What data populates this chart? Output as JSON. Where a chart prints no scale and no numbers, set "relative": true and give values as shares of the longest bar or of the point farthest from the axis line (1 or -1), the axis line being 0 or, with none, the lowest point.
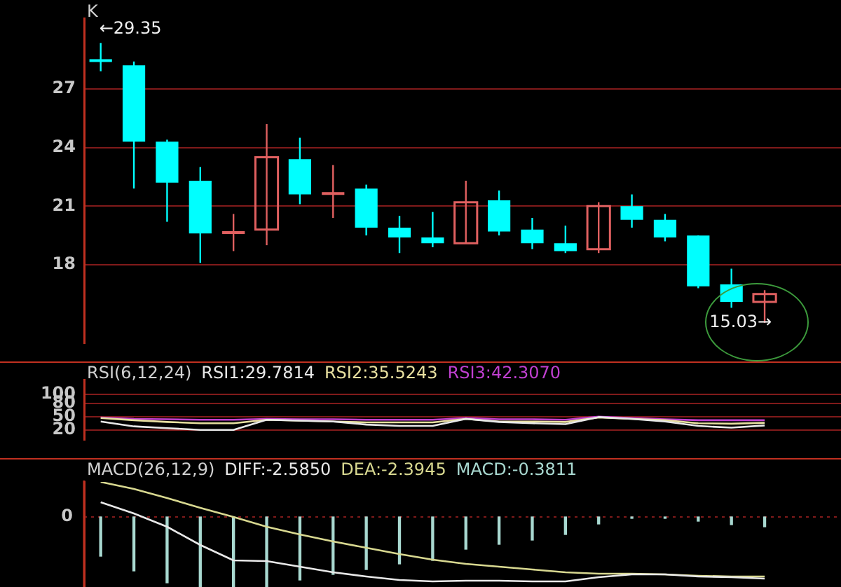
{
  "chart_data": [
    {
      "type": "candlestick",
      "title": "K",
      "categories": [
        null,
        null,
        null,
        null,
        null,
        null,
        null,
        null,
        null,
        null,
        null,
        null,
        null,
        null,
        null,
        null,
        null,
        null,
        null,
        null,
        null
      ],
      "ohlc": [
        [
          28.5,
          29.35,
          27.9,
          28.4
        ],
        [
          28.2,
          28.4,
          21.9,
          24.3
        ],
        [
          24.3,
          24.4,
          20.2,
          22.2
        ],
        [
          22.3,
          23.0,
          18.1,
          19.6
        ],
        [
          19.6,
          20.6,
          18.7,
          19.7
        ],
        [
          19.8,
          25.2,
          19.0,
          23.5
        ],
        [
          23.4,
          24.5,
          21.1,
          21.6
        ],
        [
          21.6,
          23.1,
          20.4,
          21.7
        ],
        [
          21.9,
          22.1,
          19.5,
          19.9
        ],
        [
          19.9,
          20.5,
          18.6,
          19.4
        ],
        [
          19.4,
          20.7,
          18.9,
          19.1
        ],
        [
          19.1,
          22.3,
          19.1,
          21.2
        ],
        [
          21.3,
          21.8,
          19.5,
          19.7
        ],
        [
          19.8,
          20.4,
          18.8,
          19.1
        ],
        [
          19.1,
          20.0,
          18.6,
          18.7
        ],
        [
          18.8,
          21.2,
          18.6,
          21.0
        ],
        [
          21.0,
          21.6,
          19.9,
          20.3
        ],
        [
          20.3,
          20.6,
          19.2,
          19.4
        ],
        [
          19.5,
          19.5,
          16.8,
          16.9
        ],
        [
          17.0,
          17.8,
          15.8,
          16.1
        ],
        [
          16.1,
          16.7,
          15.03,
          16.5
        ]
      ],
      "colors": [
        "#00ffff",
        "#00ffff",
        "#00ffff",
        "#00ffff",
        "#e06060",
        "#e06060",
        "#00ffff",
        "#e06060",
        "#00ffff",
        "#00ffff",
        "#00ffff",
        "#e06060",
        "#00ffff",
        "#00ffff",
        "#00ffff",
        "#e06060",
        "#00ffff",
        "#00ffff",
        "#00ffff",
        "#00ffff",
        "#e06060"
      ],
      "ylim": [
        14,
        30.6
      ],
      "yticks": [
        18,
        21,
        24,
        27
      ],
      "grid": "y",
      "tick_labels": "y",
      "annotations": [
        "←29.35",
        "15.03→"
      ]
    },
    {
      "type": "line",
      "title": "RSI(6,12,24)",
      "categories": [
        null,
        null,
        null,
        null,
        null,
        null,
        null,
        null,
        null,
        null,
        null,
        null,
        null,
        null,
        null,
        null,
        null,
        null,
        null,
        null,
        null
      ],
      "series": [
        {
          "name": "RSI1:29.7814",
          "color": "#e8e8e8",
          "values": [
            39,
            28,
            24,
            20,
            20,
            43,
            41,
            39,
            32,
            29,
            29,
            45,
            38,
            35,
            33,
            49,
            45,
            39,
            29,
            25,
            30
          ]
        },
        {
          "name": "RSI2:35.5243",
          "color": "#e8e0a0",
          "values": [
            47,
            42,
            38,
            35,
            35,
            43,
            41,
            39,
            37,
            37,
            37,
            45,
            39,
            39,
            38,
            48,
            45,
            42,
            35,
            34,
            36
          ]
        },
        {
          "name": "RSI3:42.3070",
          "color": "#c040d0",
          "values": [
            48,
            45,
            44,
            43,
            43,
            45,
            44,
            44,
            43,
            43,
            43,
            47,
            44,
            44,
            43,
            50,
            47,
            44,
            42,
            42,
            42
          ]
        }
      ],
      "ylim": [
        -2,
        133
      ],
      "yticks": [
        20,
        50,
        80,
        100
      ],
      "grid": "y",
      "tick_labels": "y"
    },
    {
      "type": "line",
      "title": "MACD(26,12,9)",
      "relative": true,
      "categories": [
        null,
        null,
        null,
        null,
        null,
        null,
        null,
        null,
        null,
        null,
        null,
        null,
        null,
        null,
        null,
        null,
        null,
        null,
        null,
        null,
        null
      ],
      "series": [
        {
          "name": "DIFF:-2.5850",
          "color": "#e8e8e8",
          "values": [
            0.21,
            0.05,
            -0.14,
            -0.4,
            -0.62,
            -0.63,
            -0.71,
            -0.79,
            -0.85,
            -0.9,
            -0.92,
            -0.91,
            -0.91,
            -0.92,
            -0.92,
            -0.86,
            -0.82,
            -0.82,
            -0.85,
            -0.86,
            -0.88
          ]
        },
        {
          "name": "DEA:-2.3945",
          "color": "#d8d890",
          "values": [
            0.5,
            0.4,
            0.27,
            0.13,
            0,
            -0.14,
            -0.25,
            -0.35,
            -0.44,
            -0.53,
            -0.61,
            -0.67,
            -0.71,
            -0.75,
            -0.79,
            -0.81,
            -0.81,
            -0.82,
            -0.84,
            -0.85,
            -0.85
          ]
        },
        {
          "name": "MACD:-0.3811",
          "type": "bar",
          "color": "#a8d8d0",
          "values": [
            -0.56,
            -0.77,
            -0.94,
            -1,
            -1,
            -1,
            -0.9,
            -0.82,
            -0.75,
            -0.67,
            -0.62,
            -0.46,
            -0.39,
            -0.33,
            -0.25,
            -0.1,
            -0.02,
            -0.02,
            -0.06,
            -0.11,
            -0.14
          ]
        }
      ],
      "ref_lines": [
        {
          "axis": "y",
          "value": 0,
          "label": "0"
        }
      ]
    }
  ]
}
